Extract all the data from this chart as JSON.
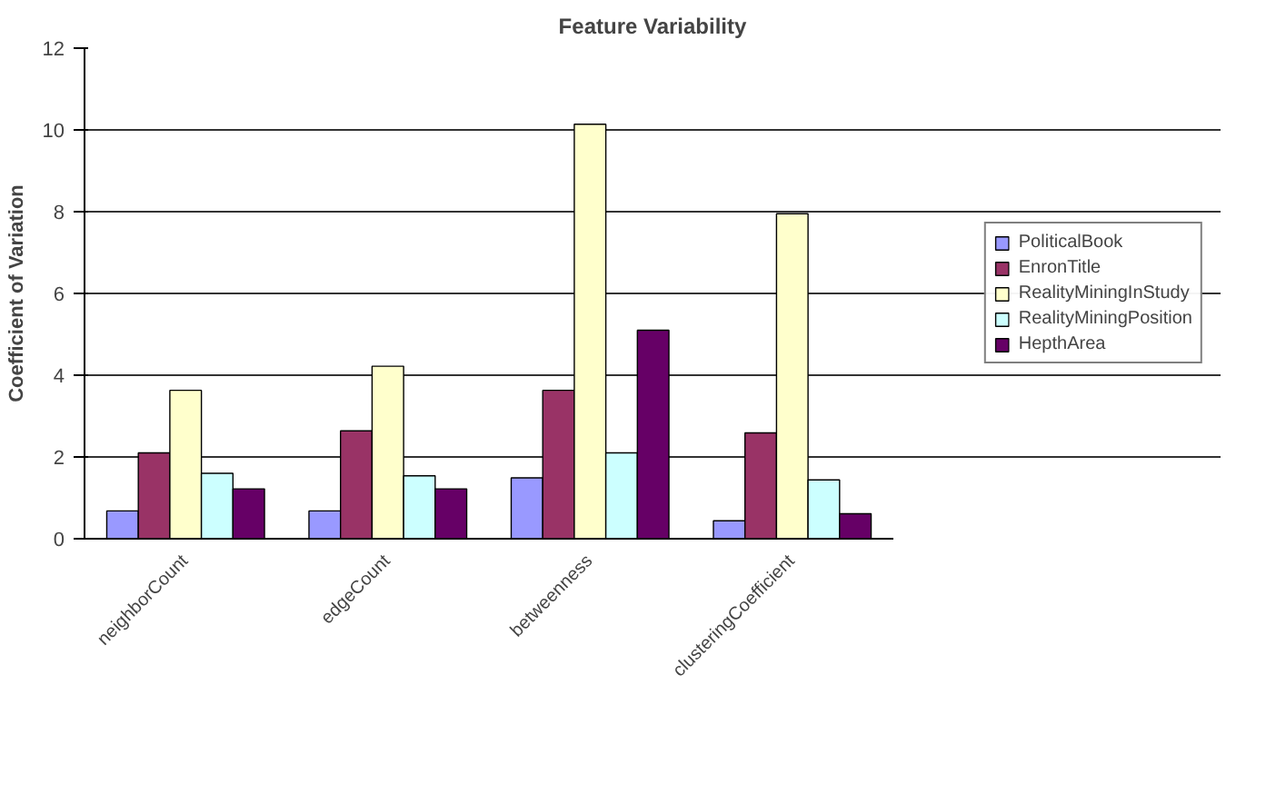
{
  "chart_data": {
    "type": "bar",
    "title": "Feature Variability",
    "ylabel": "Coefficient of Variation",
    "categories": [
      "neighborCount",
      "edgeCount",
      "betweenness",
      "clusteringCoefficient"
    ],
    "series": [
      {
        "name": "PoliticalBook",
        "color": "#9999ff",
        "values": [
          0.68,
          0.68,
          1.49,
          0.44
        ]
      },
      {
        "name": "EnronTitle",
        "color": "#993366",
        "values": [
          2.1,
          2.64,
          3.63,
          2.59
        ]
      },
      {
        "name": "RealityMiningInStudy",
        "color": "#ffffcc",
        "values": [
          3.63,
          4.22,
          10.14,
          7.95
        ]
      },
      {
        "name": "RealityMiningPosition",
        "color": "#ccffff",
        "values": [
          1.6,
          1.54,
          2.1,
          1.44
        ]
      },
      {
        "name": "HepthArea",
        "color": "#660066",
        "values": [
          1.22,
          1.22,
          5.1,
          0.61
        ]
      }
    ],
    "ylim": [
      0,
      12
    ],
    "yticks": [
      0,
      2,
      4,
      6,
      8,
      10,
      12
    ],
    "grid": "y",
    "legend": "right"
  }
}
